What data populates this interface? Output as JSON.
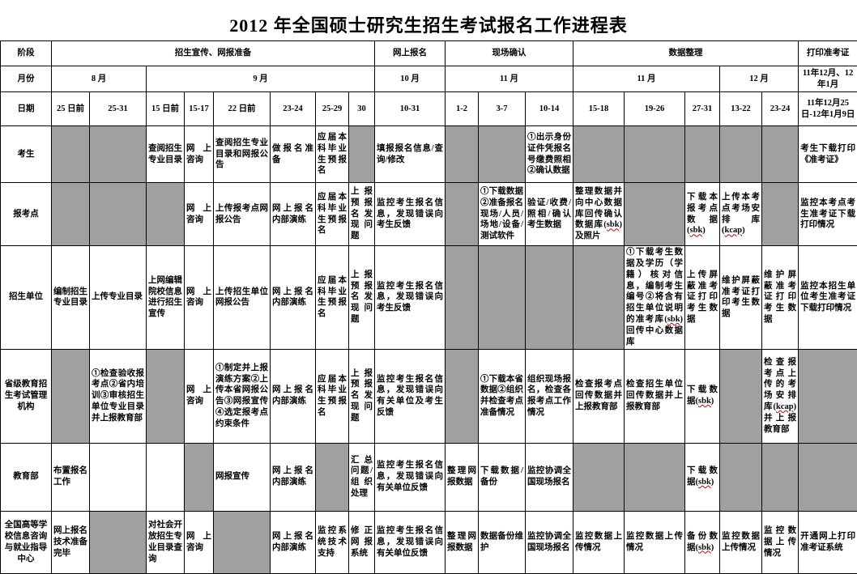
{
  "title": "2012 年全国硕士研究生招生考试报名工作进程表",
  "colors": {
    "shaded_cell": "#a0a0a0",
    "spellcheck_squiggle": "#cc0000",
    "border": "#000000"
  },
  "header": {
    "stage_label": "阶段",
    "month_label": "月份",
    "date_label": "日期",
    "stages": [
      {
        "label": "招生宣传、网报准备",
        "span": 8
      },
      {
        "label": "网上报名",
        "span": 1
      },
      {
        "label": "现场确认",
        "span": 3
      },
      {
        "label": "数据整理",
        "span": 5
      },
      {
        "label": "打印准考证",
        "span": 1
      }
    ],
    "months": [
      {
        "label": "8 月",
        "span": 2
      },
      {
        "label": "9 月",
        "span": 6
      },
      {
        "label": "10 月",
        "span": 1
      },
      {
        "label": "11 月",
        "span": 3
      },
      {
        "label": "11 月",
        "span": 3
      },
      {
        "label": "12 月",
        "span": 2
      },
      {
        "label": "11年12月、12年1月",
        "span": 1
      }
    ],
    "dates": [
      "25 日前",
      "25-31",
      "15 日前",
      "15-17",
      "22 日前",
      "23-24",
      "25-29",
      "30",
      "10-31",
      "1-2",
      "3-7",
      "10-14",
      "15-18",
      "19-26",
      "27-31",
      "13-22",
      "23-24",
      "11年12月25日-12年1月9日"
    ]
  },
  "rows": [
    {
      "label": "考生",
      "cells": [
        "",
        "",
        "查阅招生专业目录",
        "网上咨询",
        "查阅招生专业目录和网报公告",
        "做报名准备",
        "应届本科毕业生预报名",
        "",
        "填报报名信息/查询/修改",
        "",
        "",
        "①出示身份证件凭报名号缴费照相②确认数据",
        "",
        "",
        "",
        "",
        "",
        "考生下载打印《准考证》"
      ],
      "shaded": [
        1,
        1,
        0,
        0,
        0,
        0,
        0,
        1,
        0,
        1,
        1,
        0,
        1,
        1,
        1,
        1,
        1,
        0
      ]
    },
    {
      "label": "报考点",
      "cells": [
        "",
        "",
        "",
        "网上咨询",
        "上传报考点网报公告",
        "网上报名内部演练",
        "应届本科毕业生预报名",
        "上报预报名发现问题",
        "监控考生报名信息，发现错误向考生反馈",
        "",
        "①下载数据②准备报名现场/人员/场地/设备/测试软件",
        "验证/收费/照相/确认考生数据",
        "整理数据并向中心数据库回传确认数据库(sbk)及照片",
        "",
        "下载本报考点数据(sbk)",
        "上传本考点考场安排库(kcap)",
        "",
        "监控本考点考生准考证下载打印情况"
      ],
      "shaded": [
        1,
        1,
        1,
        0,
        0,
        0,
        0,
        0,
        0,
        1,
        0,
        0,
        0,
        1,
        0,
        0,
        1,
        0
      ]
    },
    {
      "label": "招生单位",
      "cells": [
        "编制招生专业目录",
        "上传专业目录",
        "上网编辑院校信息进行招生宣传",
        "网上咨询",
        "上传招生单位网报公告",
        "网上报名内部演练",
        "应届本科毕业生预报名",
        "上报预报名发现问题",
        "监控考生报名信息，发现错误向考生反馈",
        "",
        "",
        "",
        "",
        "①下载考生数据及学历（学籍）核对信息，编制考生编号②将含有招生单位说明的准考库(sbk)回传中心数据库",
        "上传屏蔽准考证打印考生数据",
        "维护屏蔽准考证打印考生数据",
        "维护屏蔽准考证打印考生数据",
        "监控本招生单位考生准考证下载打印情况"
      ],
      "shaded": [
        0,
        0,
        0,
        0,
        0,
        0,
        0,
        0,
        0,
        1,
        1,
        1,
        1,
        0,
        0,
        0,
        0,
        0
      ]
    },
    {
      "label": "省级教育招生考试管理机构",
      "cells": [
        "",
        "①检查验收报考点②省内培训③审核招生单位专业目录并上报教育部",
        "",
        "网上咨询",
        "①制定并上报演练方案②上传本省网报公告③网报宣传④选定报考点约束条件",
        "网上报名内部演练",
        "应届本科毕业生预报名",
        "上报预报名发现问题",
        "监控考生报名信息，发现错误向有关单位及考生反馈",
        "",
        "①下载本省数据②组织并检查考点准备情况",
        "组织现场报名，检查各报考点工作情况",
        "检查报考点回传数据并上报教育部",
        "检查招生单位回传数据并上报教育部",
        "下载数据(sbk)",
        "",
        "检查报考点上传的考场安排库(kcap)并上报教育部",
        ""
      ],
      "shaded": [
        1,
        0,
        1,
        0,
        0,
        0,
        0,
        0,
        0,
        1,
        0,
        0,
        0,
        0,
        0,
        1,
        0,
        1
      ]
    },
    {
      "label": "教育部",
      "cells": [
        "布置报名工作",
        "",
        "",
        "",
        "网报宣传",
        "网上报名内部演练",
        "",
        "汇总问题/组织处理",
        "监控考生报名信息，发现错误向有关单位反馈",
        "整理网报数据",
        "下载数据/备份",
        "监控协调全国现场报名",
        "",
        "",
        "下载数据(sbk)",
        "",
        "",
        ""
      ],
      "shaded": [
        0,
        0,
        0,
        1,
        0,
        0,
        1,
        0,
        0,
        0,
        0,
        0,
        1,
        1,
        0,
        1,
        1,
        1
      ]
    },
    {
      "label": "全国高等学校信息咨询与就业指导中心",
      "cells": [
        "网上报名技术准备完毕",
        "",
        "对社会开放招生专业目录查询",
        "网上咨询",
        "",
        "网上报名内部演练",
        "监控系统技术支持",
        "修正网报系统",
        "监控考生报名信息，发现错误向有关单位反馈",
        "整理网报数据",
        "数据备份维护",
        "监控协调全国现场报名",
        "监控数据上传情况",
        "监控数据上传情况",
        "备份数据(sbk)",
        "监控数据上传情况",
        "监控数据上传情况",
        "开通网上打印准考证系统"
      ],
      "shaded": [
        0,
        1,
        0,
        0,
        1,
        0,
        0,
        0,
        0,
        0,
        0,
        0,
        0,
        0,
        0,
        0,
        0,
        0
      ]
    }
  ]
}
